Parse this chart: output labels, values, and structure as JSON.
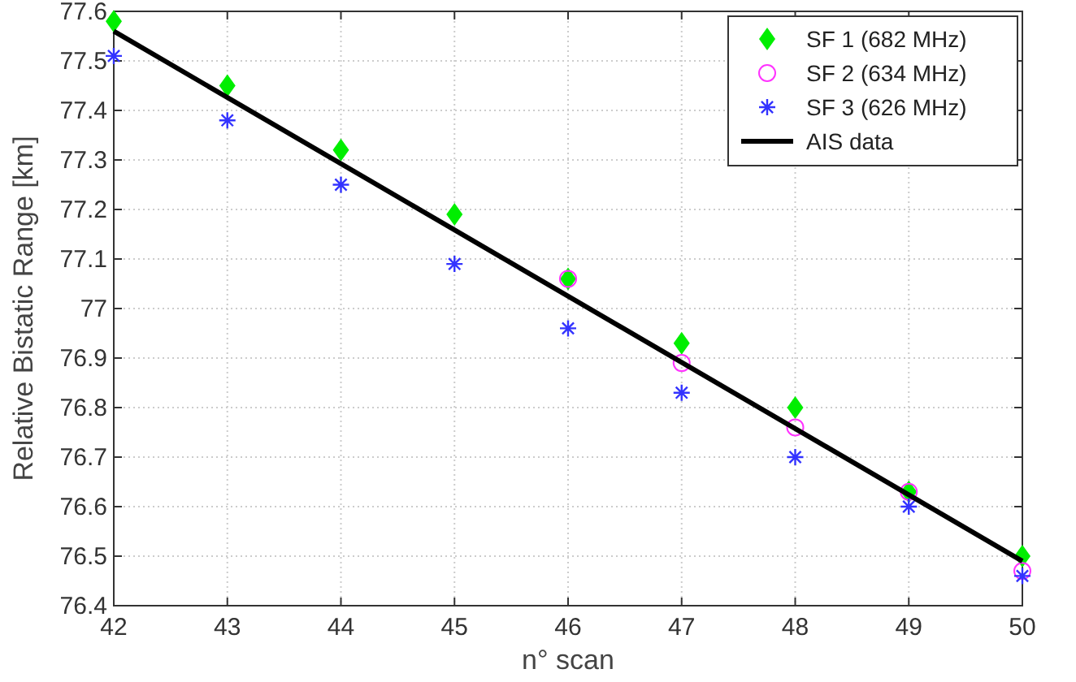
{
  "chart_data": {
    "type": "scatter",
    "xlabel": "n° scan",
    "ylabel": "Relative Bistatic Range [km]",
    "x": [
      42,
      43,
      44,
      45,
      46,
      47,
      48,
      49,
      50
    ],
    "xlim": [
      42,
      50
    ],
    "xticks": [
      42,
      43,
      44,
      45,
      46,
      47,
      48,
      49,
      50
    ],
    "ylim": [
      76.4,
      77.6
    ],
    "yticks": [
      76.4,
      76.5,
      76.6,
      76.7,
      76.8,
      76.9,
      77,
      77.1,
      77.2,
      77.3,
      77.4,
      77.5,
      77.6
    ],
    "grid": true,
    "legend": "top right",
    "series": [
      {
        "name": "SF 1 (682 MHz)",
        "color": "#00ee00",
        "marker": "diamond",
        "values": [
          77.58,
          77.45,
          77.32,
          77.19,
          77.06,
          76.93,
          76.8,
          76.63,
          76.5
        ]
      },
      {
        "name": "SF 2 (634 MHz)",
        "color": "#ff33ff",
        "marker": "circle",
        "values": [
          null,
          null,
          null,
          null,
          77.06,
          76.89,
          76.76,
          76.63,
          76.47
        ]
      },
      {
        "name": "SF 3 (626 MHz)",
        "color": "#3333ff",
        "marker": "cross",
        "values": [
          77.51,
          77.38,
          77.25,
          77.09,
          76.96,
          76.83,
          76.7,
          76.6,
          76.46
        ]
      },
      {
        "name": "AIS data",
        "color": "#000000",
        "type": "line",
        "marker": "none",
        "x": [
          42,
          50
        ],
        "values": [
          77.56,
          76.49
        ]
      }
    ]
  }
}
